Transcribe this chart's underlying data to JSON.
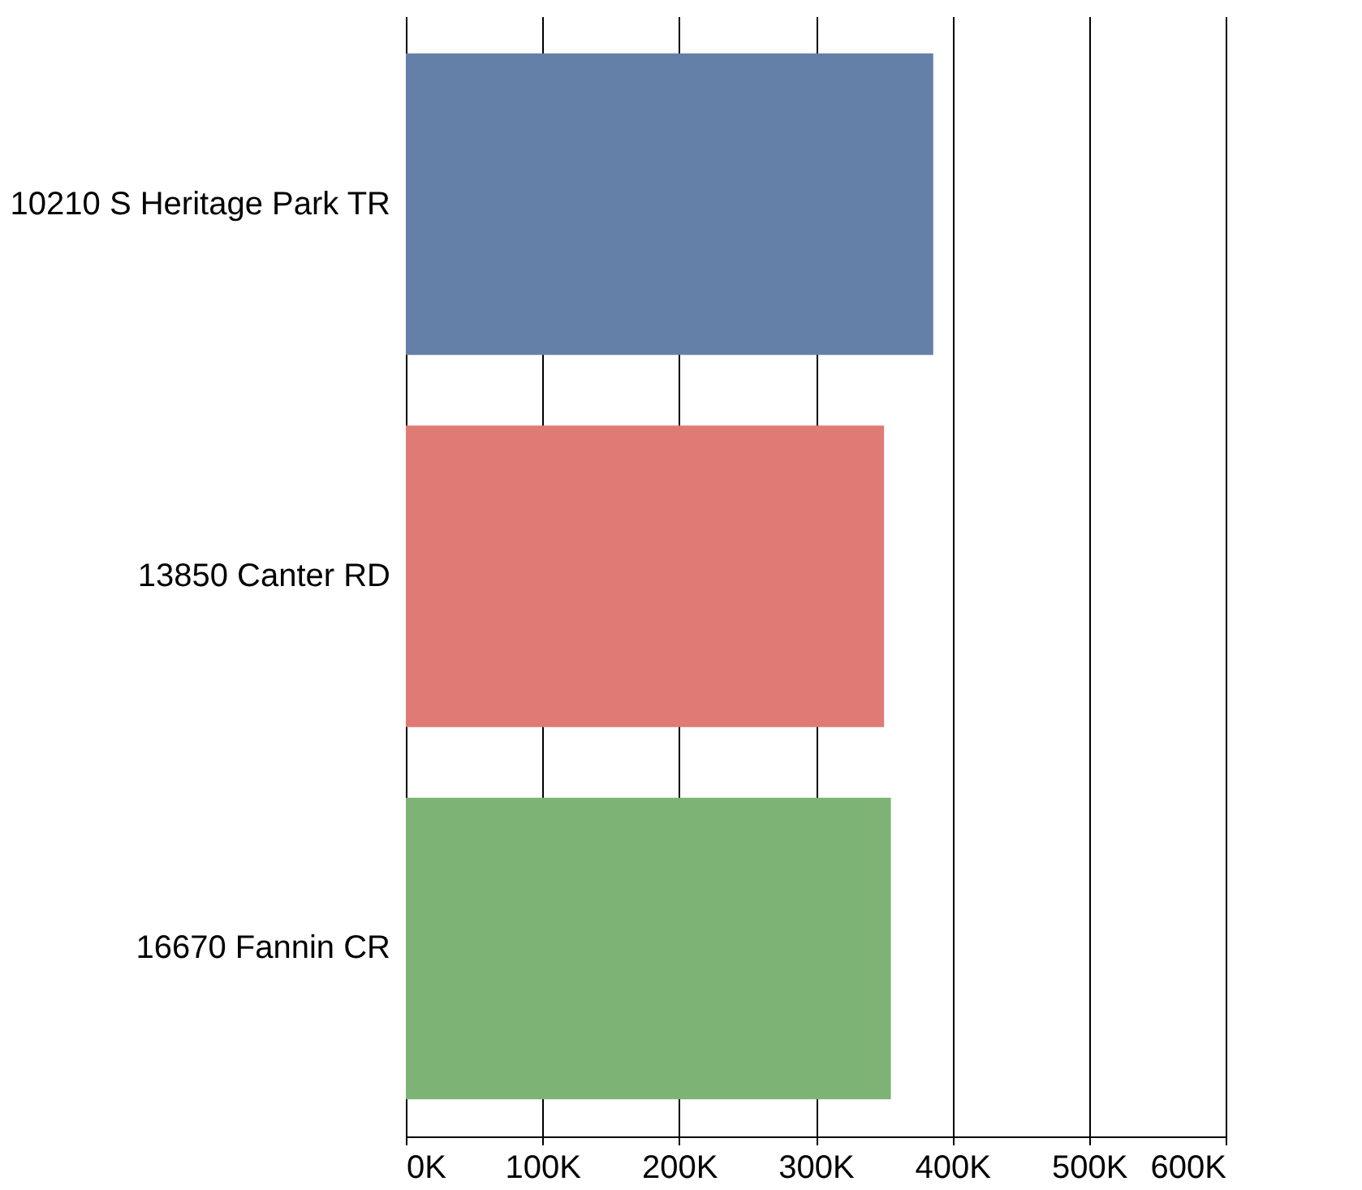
{
  "chart_data": {
    "type": "bar",
    "orientation": "horizontal",
    "categories": [
      "10210 S Heritage Park TR",
      "13850 Canter RD",
      "16670 Fannin CR"
    ],
    "values": [
      386000,
      350000,
      355000
    ],
    "colors": [
      "#6480a8",
      "#df7a74",
      "#7db375"
    ],
    "xlim": [
      0,
      600000
    ],
    "xticks": [
      {
        "value": 0,
        "label": "0K"
      },
      {
        "value": 100000,
        "label": "100K"
      },
      {
        "value": 200000,
        "label": "200K"
      },
      {
        "value": 300000,
        "label": "300K"
      },
      {
        "value": 400000,
        "label": "400K"
      },
      {
        "value": 500000,
        "label": "500K"
      },
      {
        "value": 600000,
        "label": "600K"
      }
    ],
    "grid": "x",
    "legend": false
  }
}
